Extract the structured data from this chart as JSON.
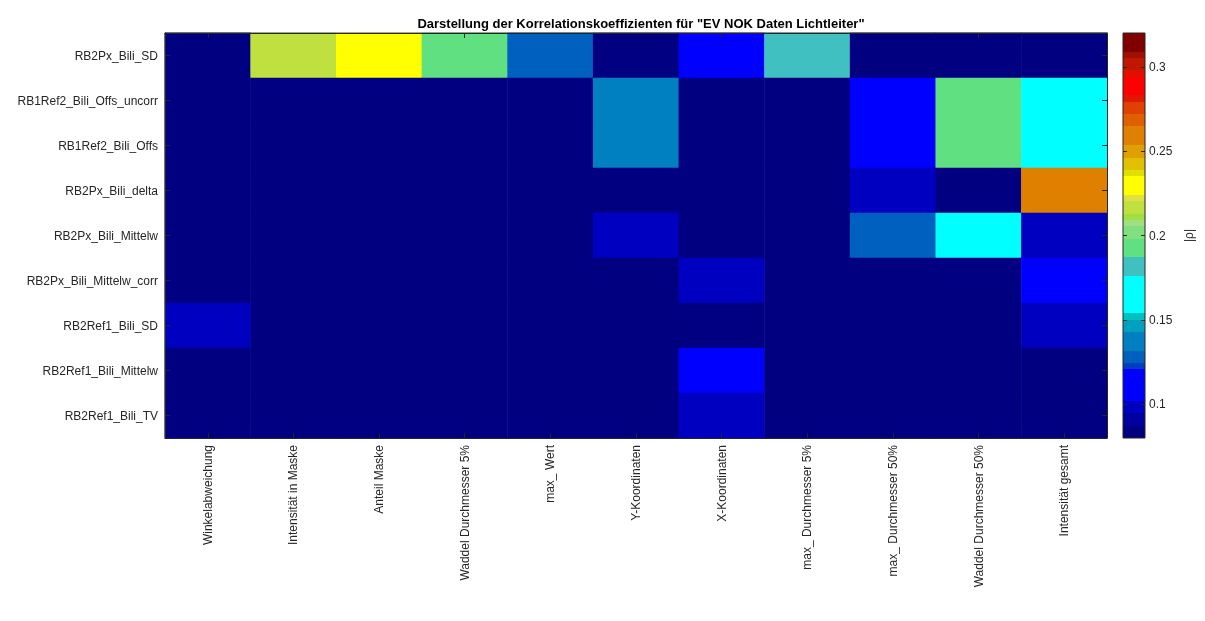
{
  "chart_data": {
    "type": "heatmap",
    "title": "Darstellung der Korrelationskoeffizienten für \"EV NOK Daten Lichtleiter\"",
    "categories": [
      "Winkelabweichung",
      "Intensität in Maske",
      "Anteil Maske",
      "Waddel Durchmesser 5%",
      "max_ Wert",
      "Y-Koordinaten",
      "X-Koordinaten",
      "max_ Durchmesser 5%",
      "max_ Durchmesser 50%",
      "Waddel Durchmesser 50%",
      "Intensität gesamt"
    ],
    "y_categories": [
      "RB2Px_Bili_SD",
      "RB1Ref2_Bili_Offs_uncorr",
      "RB1Ref2_Bili_Offs",
      "RB2Px_Bili_delta",
      "RB2Px_Bili_Mittelw",
      "RB2Px_Bili_Mittelw_corr",
      "RB2Ref1_Bili_SD",
      "RB2Ref1_Bili_Mittelw",
      "RB2Ref1_Bili_TV"
    ],
    "cells": [
      [
        0.085,
        0.215,
        0.23,
        0.19,
        0.13,
        0.085,
        0.11,
        0.18,
        0.085,
        0.085,
        0.085
      ],
      [
        0.085,
        0.085,
        0.085,
        0.085,
        0.085,
        0.14,
        0.085,
        0.085,
        0.11,
        0.19,
        0.165
      ],
      [
        0.085,
        0.085,
        0.085,
        0.085,
        0.085,
        0.14,
        0.085,
        0.085,
        0.11,
        0.19,
        0.165
      ],
      [
        0.085,
        0.085,
        0.085,
        0.085,
        0.085,
        0.085,
        0.085,
        0.085,
        0.1,
        0.085,
        0.26
      ],
      [
        0.085,
        0.085,
        0.085,
        0.085,
        0.085,
        0.1,
        0.085,
        0.085,
        0.13,
        0.165,
        0.1
      ],
      [
        0.085,
        0.085,
        0.085,
        0.085,
        0.085,
        0.085,
        0.1,
        0.085,
        0.085,
        0.085,
        0.11
      ],
      [
        0.1,
        0.085,
        0.085,
        0.085,
        0.085,
        0.085,
        0.085,
        0.085,
        0.085,
        0.085,
        0.1
      ],
      [
        0.085,
        0.085,
        0.085,
        0.085,
        0.085,
        0.085,
        0.11,
        0.085,
        0.085,
        0.085,
        0.085
      ],
      [
        0.085,
        0.085,
        0.085,
        0.085,
        0.085,
        0.085,
        0.1,
        0.085,
        0.085,
        0.085,
        0.085
      ]
    ],
    "clim": [
      0.08,
      0.32
    ],
    "cticks": [
      0.1,
      0.15,
      0.2,
      0.25,
      0.3
    ],
    "clabel": "|ρ|"
  }
}
